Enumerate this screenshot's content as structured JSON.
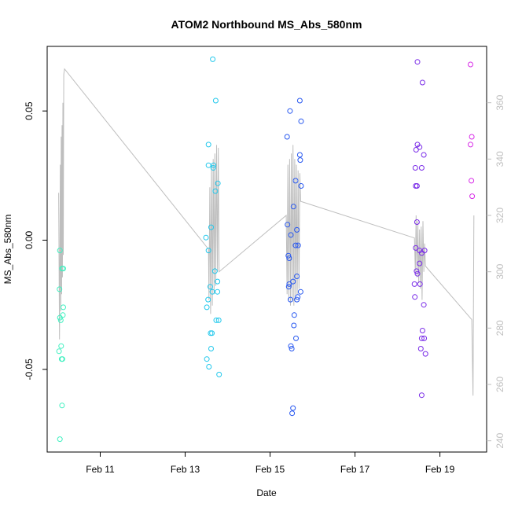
{
  "chart_data": {
    "type": "scatter",
    "title": "ATOM2 Northbound MS_Abs_580nm",
    "xlabel": "Date",
    "ylabel": "MS_Abs_580nm",
    "x_ticks": [
      "Feb 11",
      "Feb 13",
      "Feb 15",
      "Feb 17",
      "Feb 19"
    ],
    "x_tick_values_days": [
      11,
      13,
      15,
      17,
      19
    ],
    "xlim_days": [
      9.75,
      20.1
    ],
    "ylim": [
      -0.082,
      0.075
    ],
    "y_ticks": [
      -0.05,
      0.0,
      0.05
    ],
    "y_tick_labels": [
      "-0.05",
      "0.00",
      "0.05"
    ],
    "y2_ticks": [
      240,
      260,
      280,
      300,
      320,
      340,
      360
    ],
    "y2lim": [
      236,
      380
    ],
    "grid": false,
    "secondary_series_color": "#bebebe",
    "points": [
      {
        "x": 10.05,
        "y": -0.004,
        "color": "#40f0c0"
      },
      {
        "x": 10.04,
        "y": -0.019,
        "color": "#40f0c0"
      },
      {
        "x": 10.05,
        "y": -0.03,
        "color": "#40f0c0"
      },
      {
        "x": 10.07,
        "y": -0.031,
        "color": "#40f0c0"
      },
      {
        "x": 10.1,
        "y": -0.011,
        "color": "#40f0c0"
      },
      {
        "x": 10.12,
        "y": -0.029,
        "color": "#40f0c0"
      },
      {
        "x": 10.13,
        "y": -0.026,
        "color": "#40f0c0"
      },
      {
        "x": 10.08,
        "y": -0.041,
        "color": "#40f0c0"
      },
      {
        "x": 10.03,
        "y": -0.043,
        "color": "#40f0c0"
      },
      {
        "x": 10.09,
        "y": -0.046,
        "color": "#40f0c0"
      },
      {
        "x": 10.11,
        "y": -0.046,
        "color": "#40f0c0"
      },
      {
        "x": 10.1,
        "y": -0.064,
        "color": "#40f0c0"
      },
      {
        "x": 10.05,
        "y": -0.077,
        "color": "#40f0c0"
      },
      {
        "x": 10.13,
        "y": -0.011,
        "color": "#40f0c0"
      },
      {
        "x": 13.65,
        "y": 0.07,
        "color": "#22c8ec"
      },
      {
        "x": 13.72,
        "y": 0.054,
        "color": "#22c8ec"
      },
      {
        "x": 13.55,
        "y": 0.037,
        "color": "#22c8ec"
      },
      {
        "x": 13.55,
        "y": 0.029,
        "color": "#22c8ec"
      },
      {
        "x": 13.66,
        "y": 0.028,
        "color": "#22c8ec"
      },
      {
        "x": 13.67,
        "y": 0.029,
        "color": "#22c8ec"
      },
      {
        "x": 13.77,
        "y": 0.022,
        "color": "#22c8ec"
      },
      {
        "x": 13.71,
        "y": 0.019,
        "color": "#22c8ec"
      },
      {
        "x": 13.61,
        "y": 0.005,
        "color": "#22c8ec"
      },
      {
        "x": 13.49,
        "y": 0.001,
        "color": "#22c8ec"
      },
      {
        "x": 13.55,
        "y": -0.004,
        "color": "#22c8ec"
      },
      {
        "x": 13.7,
        "y": -0.012,
        "color": "#22c8ec"
      },
      {
        "x": 13.76,
        "y": -0.016,
        "color": "#22c8ec"
      },
      {
        "x": 13.59,
        "y": -0.018,
        "color": "#22c8ec"
      },
      {
        "x": 13.64,
        "y": -0.02,
        "color": "#22c8ec"
      },
      {
        "x": 13.76,
        "y": -0.02,
        "color": "#22c8ec"
      },
      {
        "x": 13.54,
        "y": -0.023,
        "color": "#22c8ec"
      },
      {
        "x": 13.51,
        "y": -0.026,
        "color": "#22c8ec"
      },
      {
        "x": 13.73,
        "y": -0.031,
        "color": "#22c8ec"
      },
      {
        "x": 13.79,
        "y": -0.031,
        "color": "#22c8ec"
      },
      {
        "x": 13.6,
        "y": -0.036,
        "color": "#22c8ec"
      },
      {
        "x": 13.63,
        "y": -0.036,
        "color": "#22c8ec"
      },
      {
        "x": 13.61,
        "y": -0.042,
        "color": "#22c8ec"
      },
      {
        "x": 13.51,
        "y": -0.046,
        "color": "#22c8ec"
      },
      {
        "x": 13.56,
        "y": -0.049,
        "color": "#22c8ec"
      },
      {
        "x": 13.8,
        "y": -0.052,
        "color": "#22c8ec"
      },
      {
        "x": 15.7,
        "y": 0.054,
        "color": "#2858f0"
      },
      {
        "x": 15.47,
        "y": 0.05,
        "color": "#2858f0"
      },
      {
        "x": 15.73,
        "y": 0.046,
        "color": "#2858f0"
      },
      {
        "x": 15.4,
        "y": 0.04,
        "color": "#2858f0"
      },
      {
        "x": 15.7,
        "y": 0.033,
        "color": "#2858f0"
      },
      {
        "x": 15.71,
        "y": 0.031,
        "color": "#2858f0"
      },
      {
        "x": 15.6,
        "y": 0.023,
        "color": "#2858f0"
      },
      {
        "x": 15.73,
        "y": 0.021,
        "color": "#2858f0"
      },
      {
        "x": 15.55,
        "y": 0.013,
        "color": "#2858f0"
      },
      {
        "x": 15.41,
        "y": 0.006,
        "color": "#2858f0"
      },
      {
        "x": 15.63,
        "y": 0.004,
        "color": "#2858f0"
      },
      {
        "x": 15.49,
        "y": 0.002,
        "color": "#2858f0"
      },
      {
        "x": 15.6,
        "y": -0.002,
        "color": "#2858f0"
      },
      {
        "x": 15.66,
        "y": -0.002,
        "color": "#2858f0"
      },
      {
        "x": 15.43,
        "y": -0.006,
        "color": "#2858f0"
      },
      {
        "x": 15.45,
        "y": -0.007,
        "color": "#2858f0"
      },
      {
        "x": 15.63,
        "y": -0.014,
        "color": "#2858f0"
      },
      {
        "x": 15.54,
        "y": -0.016,
        "color": "#2858f0"
      },
      {
        "x": 15.45,
        "y": -0.017,
        "color": "#2858f0"
      },
      {
        "x": 15.44,
        "y": -0.018,
        "color": "#2858f0"
      },
      {
        "x": 15.72,
        "y": -0.02,
        "color": "#2858f0"
      },
      {
        "x": 15.65,
        "y": -0.022,
        "color": "#2858f0"
      },
      {
        "x": 15.48,
        "y": -0.023,
        "color": "#2858f0"
      },
      {
        "x": 15.63,
        "y": -0.023,
        "color": "#2858f0"
      },
      {
        "x": 15.57,
        "y": -0.029,
        "color": "#2858f0"
      },
      {
        "x": 15.56,
        "y": -0.033,
        "color": "#2858f0"
      },
      {
        "x": 15.61,
        "y": -0.038,
        "color": "#2858f0"
      },
      {
        "x": 15.49,
        "y": -0.041,
        "color": "#2858f0"
      },
      {
        "x": 15.51,
        "y": -0.042,
        "color": "#2858f0"
      },
      {
        "x": 15.54,
        "y": -0.065,
        "color": "#2858f0"
      },
      {
        "x": 15.52,
        "y": -0.067,
        "color": "#2858f0"
      },
      {
        "x": 18.47,
        "y": 0.069,
        "color": "#7a2ce8"
      },
      {
        "x": 18.59,
        "y": 0.061,
        "color": "#7a2ce8"
      },
      {
        "x": 18.47,
        "y": 0.037,
        "color": "#7a2ce8"
      },
      {
        "x": 18.52,
        "y": 0.036,
        "color": "#7a2ce8"
      },
      {
        "x": 18.44,
        "y": 0.035,
        "color": "#7a2ce8"
      },
      {
        "x": 18.62,
        "y": 0.033,
        "color": "#7a2ce8"
      },
      {
        "x": 18.42,
        "y": 0.028,
        "color": "#7a2ce8"
      },
      {
        "x": 18.57,
        "y": 0.028,
        "color": "#7a2ce8"
      },
      {
        "x": 18.43,
        "y": 0.021,
        "color": "#7a2ce8"
      },
      {
        "x": 18.46,
        "y": 0.021,
        "color": "#7a2ce8"
      },
      {
        "x": 18.46,
        "y": 0.007,
        "color": "#7a2ce8"
      },
      {
        "x": 18.43,
        "y": -0.003,
        "color": "#7a2ce8"
      },
      {
        "x": 18.52,
        "y": -0.004,
        "color": "#7a2ce8"
      },
      {
        "x": 18.57,
        "y": -0.005,
        "color": "#7a2ce8"
      },
      {
        "x": 18.64,
        "y": -0.004,
        "color": "#7a2ce8"
      },
      {
        "x": 18.52,
        "y": -0.009,
        "color": "#7a2ce8"
      },
      {
        "x": 18.45,
        "y": -0.012,
        "color": "#7a2ce8"
      },
      {
        "x": 18.47,
        "y": -0.013,
        "color": "#7a2ce8"
      },
      {
        "x": 18.4,
        "y": -0.017,
        "color": "#7a2ce8"
      },
      {
        "x": 18.53,
        "y": -0.017,
        "color": "#7a2ce8"
      },
      {
        "x": 18.41,
        "y": -0.022,
        "color": "#7a2ce8"
      },
      {
        "x": 18.62,
        "y": -0.025,
        "color": "#7a2ce8"
      },
      {
        "x": 18.59,
        "y": -0.035,
        "color": "#7a2ce8"
      },
      {
        "x": 18.57,
        "y": -0.038,
        "color": "#7a2ce8"
      },
      {
        "x": 18.63,
        "y": -0.038,
        "color": "#7a2ce8"
      },
      {
        "x": 18.55,
        "y": -0.042,
        "color": "#7a2ce8"
      },
      {
        "x": 18.66,
        "y": -0.044,
        "color": "#7a2ce8"
      },
      {
        "x": 18.57,
        "y": -0.06,
        "color": "#7a2ce8"
      },
      {
        "x": 19.72,
        "y": 0.068,
        "color": "#d82ce8"
      },
      {
        "x": 19.75,
        "y": 0.04,
        "color": "#d82ce8"
      },
      {
        "x": 19.72,
        "y": 0.037,
        "color": "#d82ce8"
      },
      {
        "x": 19.74,
        "y": 0.023,
        "color": "#d82ce8"
      },
      {
        "x": 19.76,
        "y": 0.017,
        "color": "#d82ce8"
      }
    ],
    "secondary_series": {
      "name": "",
      "x": [
        10.02,
        10.04,
        10.06,
        10.07,
        10.08,
        10.09,
        10.1,
        10.11,
        10.12,
        10.13,
        10.14,
        10.16,
        13.55,
        13.56,
        13.58,
        13.6,
        13.62,
        13.64,
        13.66,
        13.68,
        13.7,
        13.72,
        13.74,
        13.76,
        13.78,
        13.8,
        15.38,
        15.4,
        15.42,
        15.44,
        15.46,
        15.48,
        15.5,
        15.52,
        15.54,
        15.56,
        15.58,
        15.6,
        15.62,
        15.64,
        15.66,
        15.68,
        15.7,
        15.72,
        18.4,
        18.42,
        18.44,
        18.46,
        18.48,
        18.5,
        18.52,
        18.54,
        18.56,
        18.58,
        18.6,
        18.62,
        18.64,
        18.66,
        19.75,
        19.78,
        19.8
      ],
      "y": [
        328,
        276,
        338,
        286,
        348,
        292,
        352,
        298,
        360,
        306,
        370,
        372,
        308,
        290,
        330,
        285,
        338,
        288,
        340,
        292,
        342,
        295,
        345,
        300,
        344,
        300,
        320,
        292,
        338,
        290,
        340,
        288,
        342,
        290,
        345,
        288,
        340,
        290,
        338,
        292,
        336,
        294,
        335,
        325,
        312,
        300,
        320,
        298,
        318,
        296,
        315,
        294,
        316,
        290,
        318,
        300,
        310,
        302,
        283,
        256,
        320
      ]
    }
  }
}
